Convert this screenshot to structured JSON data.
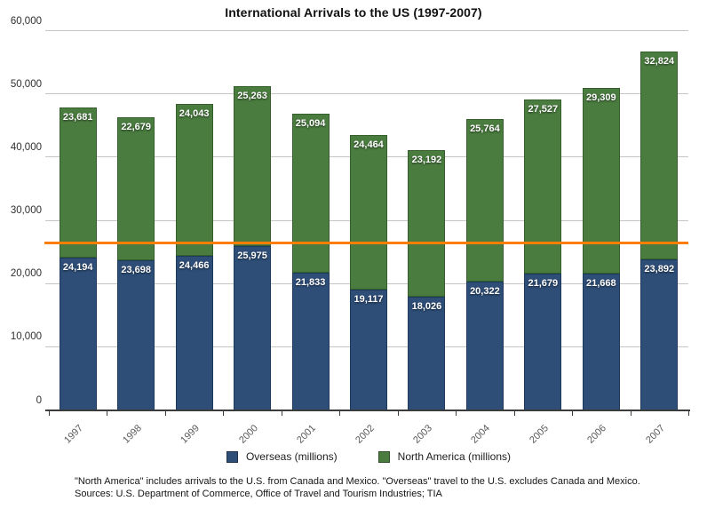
{
  "title": "International Arrivals to the US (1997-2007)",
  "chart_data": {
    "type": "bar",
    "stacked": true,
    "title": "International Arrivals to the US (1997-2007)",
    "categories": [
      "1997",
      "1998",
      "1999",
      "2000",
      "2001",
      "2002",
      "2003",
      "2004",
      "2005",
      "2006",
      "2007"
    ],
    "series": [
      {
        "name": "Overseas (millions)",
        "color": "#2e4e78",
        "border_color": "#1c3a5c",
        "values": [
          24194,
          23698,
          24466,
          25975,
          21833,
          19117,
          18026,
          20322,
          21679,
          21668,
          23892
        ]
      },
      {
        "name": "North America (millions)",
        "color": "#4a7c3f",
        "border_color": "#35602b",
        "values": [
          23681,
          22679,
          24043,
          25263,
          25094,
          24464,
          23192,
          25764,
          27527,
          29309,
          32824
        ]
      }
    ],
    "xlabel": "",
    "ylabel": "",
    "ylim": [
      0,
      60000
    ],
    "y_ticks": [
      0,
      10000,
      20000,
      30000,
      40000,
      50000,
      60000
    ],
    "grid": true,
    "legend_position": "bottom",
    "reference_line": {
      "value": 26500,
      "color": "#ff7d00"
    }
  },
  "footnotes": {
    "line1": "\"North America\" includes arrivals to the U.S. from Canada and Mexico. \"Overseas\" travel to the U.S. excludes Canada and Mexico.",
    "line2": "Sources: U.S. Department of Commerce, Office of Travel and Tourism Industries; TIA"
  }
}
